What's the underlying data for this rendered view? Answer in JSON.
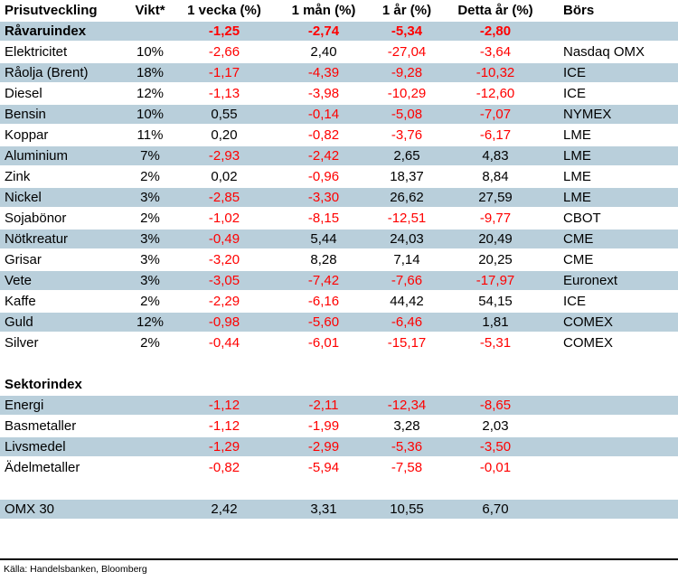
{
  "colors": {
    "negative": "#ff0000",
    "positive": "#000000",
    "row_shade": "#b9cfdb"
  },
  "table": {
    "headers": [
      "Prisutveckling",
      "Vikt*",
      "1 vecka (%)",
      "1 mån (%)",
      "1 år (%)",
      "Detta år (%)",
      "Börs"
    ],
    "rows": [
      {
        "type": "data",
        "name": "Råvaruindex",
        "vikt": "",
        "v1w": "-1,25",
        "v1m": "-2,74",
        "v1y": "-5,34",
        "ytd": "-2,80",
        "bors": "",
        "shaded": true,
        "bold": true
      },
      {
        "type": "data",
        "name": "Elektricitet",
        "vikt": "10%",
        "v1w": "-2,66",
        "v1m": "2,40",
        "v1y": "-27,04",
        "ytd": "-3,64",
        "bors": "Nasdaq OMX",
        "shaded": false,
        "bold": false
      },
      {
        "type": "data",
        "name": "Råolja (Brent)",
        "vikt": "18%",
        "v1w": "-1,17",
        "v1m": "-4,39",
        "v1y": "-9,28",
        "ytd": "-10,32",
        "bors": "ICE",
        "shaded": true,
        "bold": false
      },
      {
        "type": "data",
        "name": "Diesel",
        "vikt": "12%",
        "v1w": "-1,13",
        "v1m": "-3,98",
        "v1y": "-10,29",
        "ytd": "-12,60",
        "bors": "ICE",
        "shaded": false,
        "bold": false
      },
      {
        "type": "data",
        "name": "Bensin",
        "vikt": "10%",
        "v1w": "0,55",
        "v1m": "-0,14",
        "v1y": "-5,08",
        "ytd": "-7,07",
        "bors": "NYMEX",
        "shaded": true,
        "bold": false
      },
      {
        "type": "data",
        "name": "Koppar",
        "vikt": "11%",
        "v1w": "0,20",
        "v1m": "-0,82",
        "v1y": "-3,76",
        "ytd": "-6,17",
        "bors": "LME",
        "shaded": false,
        "bold": false
      },
      {
        "type": "data",
        "name": "Aluminium",
        "vikt": "7%",
        "v1w": "-2,93",
        "v1m": "-2,42",
        "v1y": "2,65",
        "ytd": "4,83",
        "bors": "LME",
        "shaded": true,
        "bold": false
      },
      {
        "type": "data",
        "name": "Zink",
        "vikt": "2%",
        "v1w": "0,02",
        "v1m": "-0,96",
        "v1y": "18,37",
        "ytd": "8,84",
        "bors": "LME",
        "shaded": false,
        "bold": false
      },
      {
        "type": "data",
        "name": "Nickel",
        "vikt": "3%",
        "v1w": "-2,85",
        "v1m": "-3,30",
        "v1y": "26,62",
        "ytd": "27,59",
        "bors": "LME",
        "shaded": true,
        "bold": false
      },
      {
        "type": "data",
        "name": "Sojabönor",
        "vikt": "2%",
        "v1w": "-1,02",
        "v1m": "-8,15",
        "v1y": "-12,51",
        "ytd": "-9,77",
        "bors": "CBOT",
        "shaded": false,
        "bold": false
      },
      {
        "type": "data",
        "name": "Nötkreatur",
        "vikt": "3%",
        "v1w": "-0,49",
        "v1m": "5,44",
        "v1y": "24,03",
        "ytd": "20,49",
        "bors": "CME",
        "shaded": true,
        "bold": false
      },
      {
        "type": "data",
        "name": "Grisar",
        "vikt": "3%",
        "v1w": "-3,20",
        "v1m": "8,28",
        "v1y": "7,14",
        "ytd": "20,25",
        "bors": "CME",
        "shaded": false,
        "bold": false
      },
      {
        "type": "data",
        "name": "Vete",
        "vikt": "3%",
        "v1w": "-3,05",
        "v1m": "-7,42",
        "v1y": "-7,66",
        "ytd": "-17,97",
        "bors": "Euronext",
        "shaded": true,
        "bold": false
      },
      {
        "type": "data",
        "name": "Kaffe",
        "vikt": "2%",
        "v1w": "-2,29",
        "v1m": "-6,16",
        "v1y": "44,42",
        "ytd": "54,15",
        "bors": "ICE",
        "shaded": false,
        "bold": false
      },
      {
        "type": "data",
        "name": "Guld",
        "vikt": "12%",
        "v1w": "-0,98",
        "v1m": "-5,60",
        "v1y": "-6,46",
        "ytd": "1,81",
        "bors": "COMEX",
        "shaded": true,
        "bold": false
      },
      {
        "type": "data",
        "name": "Silver",
        "vikt": "2%",
        "v1w": "-0,44",
        "v1m": "-6,01",
        "v1y": "-15,17",
        "ytd": "-5,31",
        "bors": "COMEX",
        "shaded": false,
        "bold": false
      },
      {
        "type": "spacer",
        "name": "",
        "vikt": "",
        "v1w": "",
        "v1m": "",
        "v1y": "",
        "ytd": "",
        "bors": "",
        "shaded": false,
        "bold": false
      },
      {
        "type": "section",
        "name": "Sektorindex",
        "vikt": "",
        "v1w": "",
        "v1m": "",
        "v1y": "",
        "ytd": "",
        "bors": "",
        "shaded": false,
        "bold": true
      },
      {
        "type": "data",
        "name": "Energi",
        "vikt": "",
        "v1w": "-1,12",
        "v1m": "-2,11",
        "v1y": "-12,34",
        "ytd": "-8,65",
        "bors": "",
        "shaded": true,
        "bold": false
      },
      {
        "type": "data",
        "name": "Basmetaller",
        "vikt": "",
        "v1w": "-1,12",
        "v1m": "-1,99",
        "v1y": "3,28",
        "ytd": "2,03",
        "bors": "",
        "shaded": false,
        "bold": false
      },
      {
        "type": "data",
        "name": "Livsmedel",
        "vikt": "",
        "v1w": "-1,29",
        "v1m": "-2,99",
        "v1y": "-5,36",
        "ytd": "-3,50",
        "bors": "",
        "shaded": true,
        "bold": false
      },
      {
        "type": "data",
        "name": "Ädelmetaller",
        "vikt": "",
        "v1w": "-0,82",
        "v1m": "-5,94",
        "v1y": "-7,58",
        "ytd": "-0,01",
        "bors": "",
        "shaded": false,
        "bold": false
      },
      {
        "type": "spacer",
        "name": "",
        "vikt": "",
        "v1w": "",
        "v1m": "",
        "v1y": "",
        "ytd": "",
        "bors": "",
        "shaded": false,
        "bold": false
      },
      {
        "type": "data",
        "name": "OMX 30",
        "vikt": "",
        "v1w": "2,42",
        "v1m": "3,31",
        "v1y": "10,55",
        "ytd": "6,70",
        "bors": "",
        "shaded": true,
        "bold": false
      }
    ]
  },
  "footer": {
    "source": "Källa: Handelsbanken, Bloomberg"
  }
}
